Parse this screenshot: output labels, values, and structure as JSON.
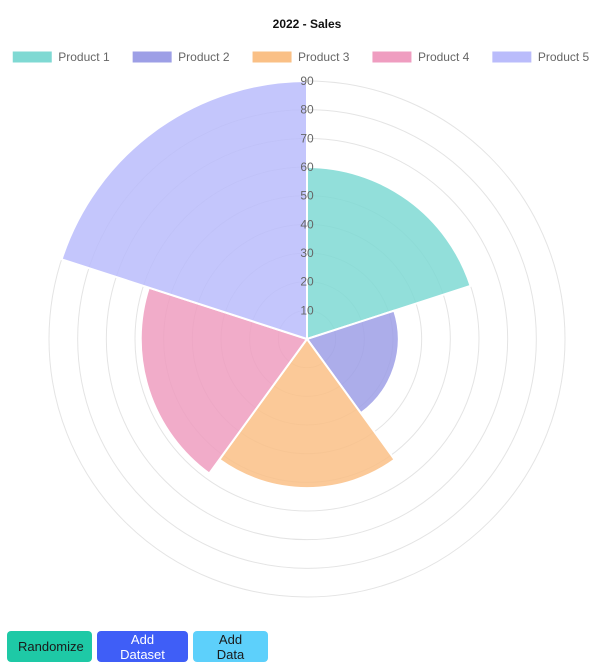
{
  "chart_data": {
    "type": "polarArea",
    "title": "2022 - Sales",
    "legend_position": "top",
    "categories": [
      "Product 1",
      "Product 2",
      "Product 3",
      "Product 4",
      "Product 5"
    ],
    "values": [
      60,
      32,
      52,
      58,
      90
    ],
    "colors": [
      "#7fd9d3",
      "#9d9fe6",
      "#fac086",
      "#ef9dc0",
      "#babcfb"
    ],
    "r_ticks": [
      10,
      20,
      30,
      40,
      50,
      60,
      70,
      80,
      90
    ],
    "rlim": [
      0,
      90
    ],
    "grid": true
  },
  "buttons": {
    "randomize": "Randomize",
    "add_dataset": "Add Dataset",
    "add_data": "Add Data"
  }
}
